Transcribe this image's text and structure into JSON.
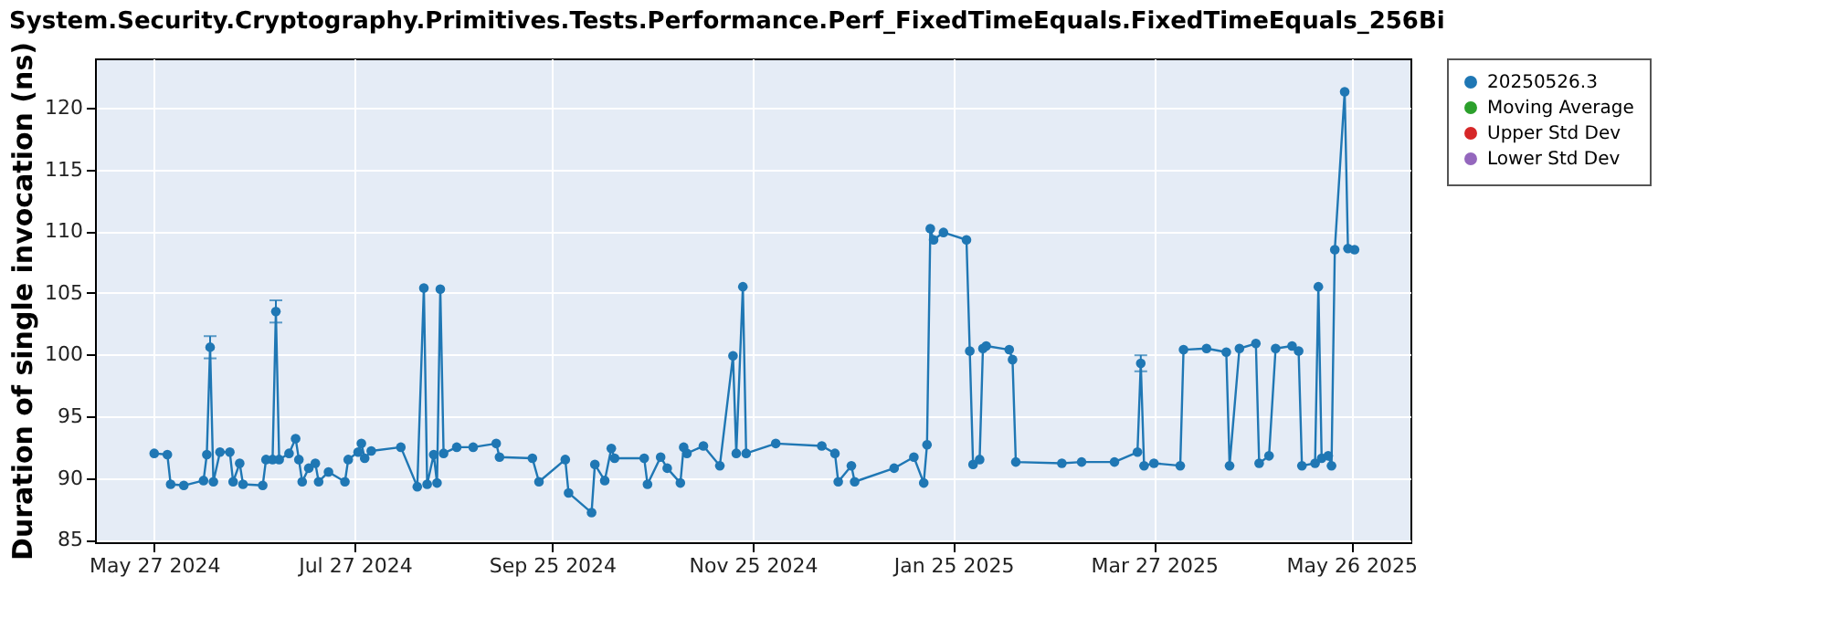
{
  "chart_data": {
    "type": "line",
    "title": "System.Security.Cryptography.Primitives.Tests.Performance.Perf_FixedTimeEquals.FixedTimeEquals_256Bi",
    "ylabel": "Duration of single invocation (ns)",
    "xlim": [
      "2024-05-09",
      "2025-06-13"
    ],
    "xticks": [
      {
        "value": "2024-05-27",
        "label": "May 27 2024"
      },
      {
        "value": "2024-07-27",
        "label": "Jul 27 2024"
      },
      {
        "value": "2024-09-25",
        "label": "Sep 25 2024"
      },
      {
        "value": "2024-11-25",
        "label": "Nov 25 2024"
      },
      {
        "value": "2025-01-25",
        "label": "Jan 25 2025"
      },
      {
        "value": "2025-03-27",
        "label": "Mar 27 2025"
      },
      {
        "value": "2025-05-26",
        "label": "May 26 2025"
      }
    ],
    "ylim": [
      84.8,
      124
    ],
    "yticks": [
      85,
      90,
      95,
      100,
      105,
      110,
      115,
      120
    ],
    "grid": true,
    "legend": "right",
    "marker": "circle",
    "line_style": "solid",
    "series": [
      {
        "name": "20250526.3",
        "color": "#1f77b4",
        "x": [
          "2024-05-27",
          "2024-05-31",
          "2024-06-01",
          "2024-06-05",
          "2024-06-11",
          "2024-06-12",
          "2024-06-13",
          "2024-06-14",
          "2024-06-16",
          "2024-06-19",
          "2024-06-20",
          "2024-06-22",
          "2024-06-23",
          "2024-06-29",
          "2024-06-30",
          "2024-07-02",
          "2024-07-03",
          "2024-07-04",
          "2024-07-07",
          "2024-07-09",
          "2024-07-10",
          "2024-07-11",
          "2024-07-13",
          "2024-07-15",
          "2024-07-16",
          "2024-07-19",
          "2024-07-24",
          "2024-07-25",
          "2024-07-28",
          "2024-07-29",
          "2024-07-30",
          "2024-08-01",
          "2024-08-10",
          "2024-08-15",
          "2024-08-17",
          "2024-08-18",
          "2024-08-20",
          "2024-08-21",
          "2024-08-22",
          "2024-08-23",
          "2024-08-27",
          "2024-09-01",
          "2024-09-08",
          "2024-09-09",
          "2024-09-19",
          "2024-09-21",
          "2024-09-29",
          "2024-09-30",
          "2024-10-07",
          "2024-10-08",
          "2024-10-11",
          "2024-10-13",
          "2024-10-14",
          "2024-10-23",
          "2024-10-24",
          "2024-10-28",
          "2024-10-30",
          "2024-11-03",
          "2024-11-04",
          "2024-11-05",
          "2024-11-10",
          "2024-11-15",
          "2024-11-19",
          "2024-11-20",
          "2024-11-22",
          "2024-11-23",
          "2024-12-02",
          "2024-12-16",
          "2024-12-20",
          "2024-12-21",
          "2024-12-25",
          "2024-12-26",
          "2025-01-07",
          "2025-01-13",
          "2025-01-16",
          "2025-01-17",
          "2025-01-18",
          "2025-01-19",
          "2025-01-22",
          "2025-01-29",
          "2025-01-30",
          "2025-01-31",
          "2025-02-02",
          "2025-02-03",
          "2025-02-04",
          "2025-02-11",
          "2025-02-12",
          "2025-02-13",
          "2025-02-27",
          "2025-03-05",
          "2025-03-15",
          "2025-03-22",
          "2025-03-23",
          "2025-03-24",
          "2025-03-27",
          "2025-04-04",
          "2025-04-05",
          "2025-04-12",
          "2025-04-18",
          "2025-04-19",
          "2025-04-22",
          "2025-04-27",
          "2025-04-28",
          "2025-05-01",
          "2025-05-03",
          "2025-05-08",
          "2025-05-10",
          "2025-05-11",
          "2025-05-15",
          "2025-05-16",
          "2025-05-17",
          "2025-05-19",
          "2025-05-20",
          "2025-05-21",
          "2025-05-24",
          "2025-05-25",
          "2025-05-27"
        ],
        "values": [
          92.0,
          91.9,
          89.5,
          89.4,
          89.8,
          91.9,
          100.6,
          89.7,
          92.1,
          92.1,
          89.7,
          91.2,
          89.5,
          89.4,
          91.5,
          91.5,
          103.5,
          91.5,
          92.0,
          93.2,
          91.5,
          89.7,
          90.8,
          91.2,
          89.7,
          90.5,
          89.7,
          91.5,
          92.1,
          92.8,
          91.6,
          92.2,
          92.5,
          89.3,
          105.4,
          89.5,
          91.9,
          89.6,
          105.3,
          92.0,
          92.5,
          92.5,
          92.8,
          91.7,
          91.6,
          89.7,
          91.5,
          88.8,
          87.2,
          91.1,
          89.8,
          92.4,
          91.6,
          91.6,
          89.5,
          91.7,
          90.8,
          89.6,
          92.5,
          92.0,
          92.6,
          91.0,
          99.9,
          92.0,
          105.5,
          92.0,
          92.8,
          92.6,
          92.0,
          89.7,
          91.0,
          89.7,
          90.8,
          91.7,
          89.6,
          92.7,
          110.2,
          109.3,
          109.9,
          109.3,
          100.3,
          91.1,
          91.5,
          100.5,
          100.7,
          100.4,
          99.6,
          91.3,
          91.2,
          91.3,
          91.3,
          92.1,
          99.3,
          91.0,
          91.2,
          91.0,
          100.4,
          100.5,
          100.2,
          91.0,
          100.5,
          100.9,
          91.2,
          91.8,
          100.5,
          100.7,
          100.3,
          91.0,
          91.2,
          105.5,
          91.6,
          91.8,
          91.0,
          108.5,
          121.3,
          108.6,
          108.5
        ],
        "errors": [
          null,
          null,
          null,
          null,
          null,
          null,
          0.9,
          null,
          null,
          null,
          null,
          null,
          null,
          null,
          null,
          null,
          0.9,
          null,
          null,
          null,
          null,
          null,
          null,
          null,
          null,
          null,
          null,
          null,
          null,
          null,
          null,
          null,
          null,
          null,
          null,
          null,
          null,
          null,
          null,
          null,
          null,
          null,
          null,
          null,
          null,
          null,
          null,
          null,
          null,
          null,
          null,
          null,
          null,
          null,
          null,
          null,
          null,
          null,
          null,
          null,
          null,
          null,
          null,
          null,
          null,
          null,
          null,
          null,
          null,
          null,
          null,
          null,
          null,
          null,
          null,
          null,
          null,
          null,
          null,
          null,
          null,
          null,
          null,
          null,
          null,
          null,
          null,
          null,
          null,
          null,
          null,
          null,
          0.65,
          null,
          null,
          null,
          null,
          null,
          null,
          null,
          null,
          null,
          null,
          null,
          null,
          null,
          null,
          null,
          null,
          null,
          null,
          null,
          null,
          null,
          null,
          null,
          null
        ]
      },
      {
        "name": "Moving Average",
        "color": "#2ca02c"
      },
      {
        "name": "Upper Std Dev",
        "color": "#d62728"
      },
      {
        "name": "Lower Std Dev",
        "color": "#9467bd"
      }
    ]
  }
}
